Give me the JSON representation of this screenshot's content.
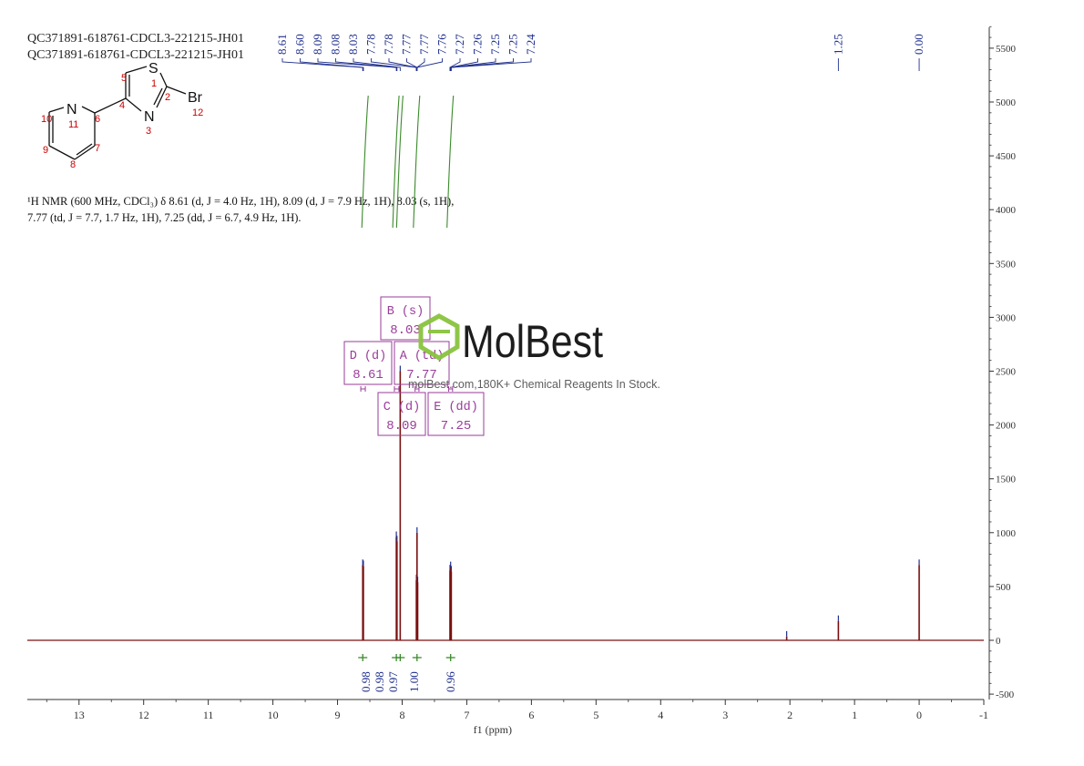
{
  "chart_data": {
    "type": "line",
    "title_lines": [
      "QC371891-618761-CDCL3-221215-JH01",
      "QC371891-618761-CDCL3-221215-JH01"
    ],
    "xlabel": "f1 (ppm)",
    "ylabel": "",
    "xlim": [
      13.8,
      -1.0
    ],
    "ylim": [
      -500,
      5700
    ],
    "x_ticks": [
      13,
      12,
      11,
      10,
      9,
      8,
      7,
      6,
      5,
      4,
      3,
      2,
      1,
      0,
      -1
    ],
    "y_ticks": [
      5500,
      5000,
      4500,
      4000,
      3500,
      3000,
      2500,
      2000,
      1500,
      1000,
      500,
      0,
      -500
    ],
    "grid": false,
    "peaks": [
      {
        "ppm": 8.61,
        "height": 700
      },
      {
        "ppm": 8.6,
        "height": 690
      },
      {
        "ppm": 8.09,
        "height": 960
      },
      {
        "ppm": 8.08,
        "height": 920
      },
      {
        "ppm": 8.03,
        "height": 2500
      },
      {
        "ppm": 7.78,
        "height": 560
      },
      {
        "ppm": 7.77,
        "height": 1000
      },
      {
        "ppm": 7.76,
        "height": 540
      },
      {
        "ppm": 7.26,
        "height": 650
      },
      {
        "ppm": 7.25,
        "height": 680
      },
      {
        "ppm": 7.24,
        "height": 640
      },
      {
        "ppm": 2.05,
        "height": 35
      },
      {
        "ppm": 1.25,
        "height": 180
      },
      {
        "ppm": 0.0,
        "height": 700
      }
    ],
    "peak_labels": [
      "8.61",
      "8.60",
      "8.09",
      "8.08",
      "8.03",
      "7.78",
      "7.78",
      "7.77",
      "7.77",
      "7.76",
      "7.27",
      "7.26",
      "7.25",
      "7.25",
      "7.24"
    ],
    "peak_labels_right": [
      "1.25",
      "0.00"
    ],
    "integrals": [
      {
        "ppm": 8.61,
        "value": "0.98"
      },
      {
        "ppm": 8.09,
        "value": "0.98"
      },
      {
        "ppm": 8.03,
        "value": "0.97"
      },
      {
        "ppm": 7.77,
        "value": "1.00"
      },
      {
        "ppm": 7.25,
        "value": "0.96"
      }
    ],
    "multiplets": [
      {
        "label": "B (s)",
        "shift": "8.03"
      },
      {
        "label": "D (d)",
        "shift": "8.61"
      },
      {
        "label": "A (td)",
        "shift": "7.77"
      },
      {
        "label": "C (d)",
        "shift": "8.09"
      },
      {
        "label": "E (dd)",
        "shift": "7.25"
      }
    ],
    "nmr_text_line1": "¹H NMR (600 MHz, CDCl₃) δ 8.61 (d, J = 4.0 Hz, 1H), 8.09 (d, J = 7.9 Hz, 1H), 8.03 (s, 1H),",
    "nmr_text_line2": "7.77 (td, J = 7.7, 1.7 Hz, 1H), 7.25 (dd, J = 6.7, 4.9 Hz, 1H).",
    "structure": {
      "atoms": [
        "S",
        "N",
        "N",
        "Br"
      ],
      "numbers": [
        "1",
        "2",
        "3",
        "4",
        "5",
        "6",
        "7",
        "8",
        "9",
        "10",
        "11",
        "12"
      ]
    },
    "watermark": {
      "brand": "MolBest",
      "tagline": "molBest.com,180K+ Chemical Reagents In Stock."
    },
    "colors": {
      "spectrum": "#7a1010",
      "peak_label": "#1f2f8c",
      "integral": "#3a8a2a",
      "multiplet_box": "#9a3c9a",
      "atom_number": "#cc0000",
      "watermark_green": "#8ac43f",
      "axis": "#333333"
    }
  }
}
